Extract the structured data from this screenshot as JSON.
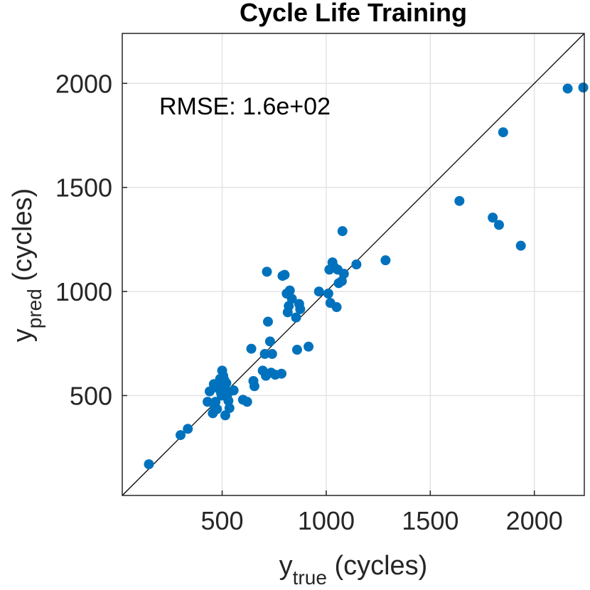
{
  "chart_data": {
    "type": "scatter",
    "title": "Cycle Life Training",
    "xlabel": {
      "main": "y",
      "sub": "true",
      "rest": " (cycles)"
    },
    "ylabel": {
      "main": "y",
      "sub": "pred",
      "rest": " (cycles)"
    },
    "xlim": [
      20,
      2240
    ],
    "ylim": [
      20,
      2240
    ],
    "xticks": [
      500,
      1000,
      1500,
      2000
    ],
    "yticks": [
      500,
      1000,
      1500,
      2000
    ],
    "grid": true,
    "reference_line": "y = x",
    "annotation": "RMSE: 1.6e+02",
    "marker_color": "#0072BD",
    "points": [
      [
        148,
        170
      ],
      [
        300,
        310
      ],
      [
        335,
        340
      ],
      [
        430,
        470
      ],
      [
        440,
        520
      ],
      [
        455,
        415
      ],
      [
        460,
        555
      ],
      [
        465,
        445
      ],
      [
        468,
        470
      ],
      [
        475,
        435
      ],
      [
        480,
        535
      ],
      [
        485,
        565
      ],
      [
        490,
        580
      ],
      [
        495,
        510
      ],
      [
        498,
        500
      ],
      [
        500,
        620
      ],
      [
        502,
        545
      ],
      [
        505,
        595
      ],
      [
        510,
        575
      ],
      [
        512,
        540
      ],
      [
        515,
        405
      ],
      [
        520,
        560
      ],
      [
        525,
        505
      ],
      [
        530,
        475
      ],
      [
        535,
        440
      ],
      [
        555,
        525
      ],
      [
        600,
        480
      ],
      [
        620,
        470
      ],
      [
        640,
        725
      ],
      [
        650,
        570
      ],
      [
        655,
        545
      ],
      [
        695,
        620
      ],
      [
        705,
        700
      ],
      [
        710,
        595
      ],
      [
        715,
        1095
      ],
      [
        720,
        855
      ],
      [
        730,
        760
      ],
      [
        735,
        610
      ],
      [
        740,
        700
      ],
      [
        755,
        600
      ],
      [
        785,
        605
      ],
      [
        790,
        1075
      ],
      [
        800,
        1080
      ],
      [
        810,
        990
      ],
      [
        815,
        900
      ],
      [
        820,
        930
      ],
      [
        825,
        1005
      ],
      [
        835,
        965
      ],
      [
        855,
        875
      ],
      [
        860,
        720
      ],
      [
        870,
        940
      ],
      [
        875,
        915
      ],
      [
        915,
        735
      ],
      [
        965,
        1000
      ],
      [
        1010,
        990
      ],
      [
        1015,
        1105
      ],
      [
        1020,
        945
      ],
      [
        1030,
        1140
      ],
      [
        1040,
        1115
      ],
      [
        1050,
        925
      ],
      [
        1055,
        1105
      ],
      [
        1060,
        1040
      ],
      [
        1075,
        1050
      ],
      [
        1078,
        1290
      ],
      [
        1085,
        1085
      ],
      [
        1145,
        1130
      ],
      [
        1285,
        1150
      ],
      [
        1640,
        1435
      ],
      [
        1800,
        1355
      ],
      [
        1830,
        1320
      ],
      [
        1850,
        1765
      ],
      [
        1935,
        1220
      ],
      [
        2160,
        1975
      ],
      [
        2235,
        1980
      ]
    ]
  }
}
